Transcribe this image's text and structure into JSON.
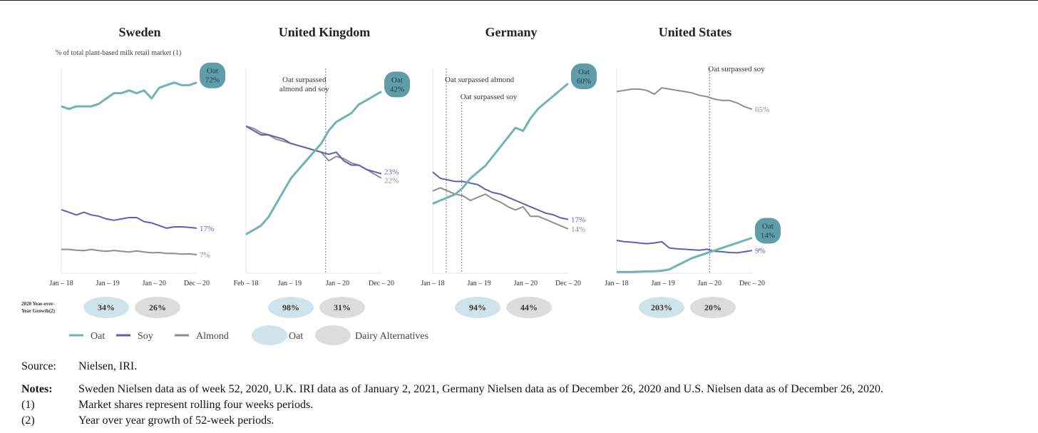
{
  "chart_data": {
    "type": "line",
    "subtitle": "% of total plant-based milk retail market (1)",
    "growth_label": [
      "2020 Year-over-",
      "Year Growth(2)"
    ],
    "legend": {
      "oat_line": "Oat",
      "soy_line": "Soy",
      "almond_line": "Almond",
      "oat_badge": "Oat",
      "dairy_badge": "Dairy Alternatives"
    },
    "colors": {
      "oat": "#6fb3b5",
      "soy": "#5a5fb8",
      "almond": "#8e8e8e",
      "bubble": "#5f9ea8",
      "oat_badge": "#cfe4ea",
      "dairy_badge": "#dcdcdc"
    },
    "x_unit": "months since Jan-2018 (sampled every 2 months)",
    "panels": [
      {
        "title": "Sweden",
        "ylim": [
          0,
          80
        ],
        "x_start": 0,
        "ticks": [
          {
            "m": 0,
            "label": "Jan – 18"
          },
          {
            "m": 12,
            "label": "Jan – 19"
          },
          {
            "m": 24,
            "label": "Jan – 20"
          },
          {
            "m": 35,
            "label": "Dec – 20"
          }
        ],
        "oat": [
          63,
          62,
          63,
          63,
          63,
          64,
          66,
          68,
          68,
          69,
          68,
          69,
          66,
          70,
          71,
          72,
          71,
          71,
          72
        ],
        "soy": [
          24,
          23,
          22,
          23,
          22,
          21.5,
          20.5,
          20,
          20.5,
          21,
          21,
          19.5,
          19,
          18,
          17,
          17.5,
          17.5,
          17.3,
          17
        ],
        "almond": [
          9,
          9,
          8.7,
          8.5,
          9,
          8.5,
          8.3,
          8.6,
          8.3,
          8,
          8.4,
          8,
          7.7,
          7.8,
          7.5,
          7.5,
          7.2,
          7.3,
          7
        ],
        "labels": {
          "oat_name": "Oat",
          "oat": "72%",
          "soy": "17%",
          "almond": "7%"
        },
        "annotations": [],
        "growth": {
          "oat": "34%",
          "dairy": "26%"
        }
      },
      {
        "title": "United Kingdom",
        "ylim": [
          0,
          49
        ],
        "x_start": 1,
        "ticks": [
          {
            "m": 1,
            "label": "Feb – 18"
          },
          {
            "m": 12,
            "label": "Jan – 19"
          },
          {
            "m": 24,
            "label": "Jan – 20"
          },
          {
            "m": 35,
            "label": "Dec – 20"
          }
        ],
        "oat": [
          9,
          10,
          11,
          13,
          16,
          19,
          22,
          24,
          26,
          28,
          30,
          33,
          35,
          36,
          37,
          39,
          40,
          41,
          42
        ],
        "soy": [
          34,
          33,
          32,
          32,
          31.5,
          31,
          30,
          29.5,
          29,
          28.5,
          28,
          27.5,
          28,
          26,
          25,
          25,
          24,
          23.5,
          23
        ],
        "almond": [
          34,
          33.5,
          32.5,
          32,
          31,
          30.5,
          30,
          29.5,
          29,
          28.5,
          28,
          26,
          27,
          26.5,
          25.5,
          25,
          24,
          23,
          22
        ],
        "labels": {
          "oat_name": "Oat",
          "oat": "42%",
          "soy": "23%",
          "almond": "22%"
        },
        "annotations": [
          {
            "m": 21,
            "lines": [
              "Oat surpassed",
              "almond and soy"
            ]
          }
        ],
        "growth": {
          "oat": "98%",
          "dairy": "31%"
        }
      },
      {
        "title": "Germany",
        "ylim": [
          0,
          67
        ],
        "x_start": 0,
        "ticks": [
          {
            "m": 0,
            "label": "Jan – 18"
          },
          {
            "m": 12,
            "label": "Jan – 19"
          },
          {
            "m": 24,
            "label": "Jan – 20"
          },
          {
            "m": 35,
            "label": "Dec – 20"
          }
        ],
        "oat": [
          22,
          23,
          24,
          25,
          27,
          30,
          32,
          34,
          37,
          40,
          43,
          46,
          45,
          49,
          52,
          54,
          56,
          58,
          60
        ],
        "soy": [
          32,
          30,
          29.5,
          29,
          29,
          28.5,
          28,
          26.5,
          25.5,
          25,
          24,
          23,
          22,
          21,
          20,
          19,
          18.5,
          17.5,
          17
        ],
        "almond": [
          26,
          27,
          26,
          25,
          24.5,
          23,
          24,
          25,
          23.5,
          22.5,
          21,
          20,
          21,
          18,
          18,
          17,
          16,
          15,
          14
        ],
        "labels": {
          "oat_name": "Oat",
          "oat": "60%",
          "soy": "17%",
          "almond": "14%"
        },
        "annotations": [
          {
            "m": 3.5,
            "lines": [
              "Oat surpassed almond"
            ]
          },
          {
            "m": 7.5,
            "lines": [
              "Oat surpassed soy"
            ]
          }
        ],
        "growth": {
          "oat": "94%",
          "dairy": "44%"
        }
      },
      {
        "title": "United States",
        "ylim": [
          0,
          84
        ],
        "x_start": 0,
        "ticks": [
          {
            "m": 0,
            "label": "Jan – 18"
          },
          {
            "m": 12,
            "label": "Jan – 19"
          },
          {
            "m": 24,
            "label": "Jan – 20"
          },
          {
            "m": 35,
            "label": "Dec – 20"
          }
        ],
        "oat": [
          0.5,
          0.5,
          0.5,
          0.6,
          0.7,
          0.8,
          1,
          1.5,
          3,
          4.5,
          6,
          7,
          8,
          9,
          10,
          11,
          12,
          13,
          14
        ],
        "soy": [
          13,
          12.5,
          12.3,
          12,
          11.7,
          12,
          12.5,
          10,
          9.7,
          9.5,
          9.3,
          9.1,
          9.5,
          8.7,
          8.5,
          8.2,
          8.1,
          8.5,
          9
        ],
        "almond": [
          72,
          72.5,
          73,
          73,
          72.5,
          71,
          73.5,
          73,
          72.5,
          72,
          71.5,
          70.5,
          70,
          69,
          68.5,
          68.5,
          67.5,
          66,
          65
        ],
        "labels": {
          "oat_name": "Oat",
          "oat": "14%",
          "soy": "9%",
          "almond": "65%"
        },
        "annotations": [
          {
            "m": 24,
            "lines": [
              "Oat surpassed soy"
            ]
          }
        ],
        "growth": {
          "oat": "203%",
          "dairy": "20%"
        }
      }
    ]
  },
  "notes": {
    "source_key": "Source:",
    "source": "Nielsen, IRI.",
    "notes_key": "Notes:",
    "notes": "Sweden Nielsen data as of week 52, 2020, U.K. IRI data as of January 2, 2021, Germany Nielsen data as of December 26, 2020 and U.S. Nielsen data as of December 26, 2020.",
    "n1_key": "(1)",
    "n1": "Market shares represent rolling four weeks periods.",
    "n2_key": "(2)",
    "n2": "Year over year growth of 52-week periods."
  }
}
